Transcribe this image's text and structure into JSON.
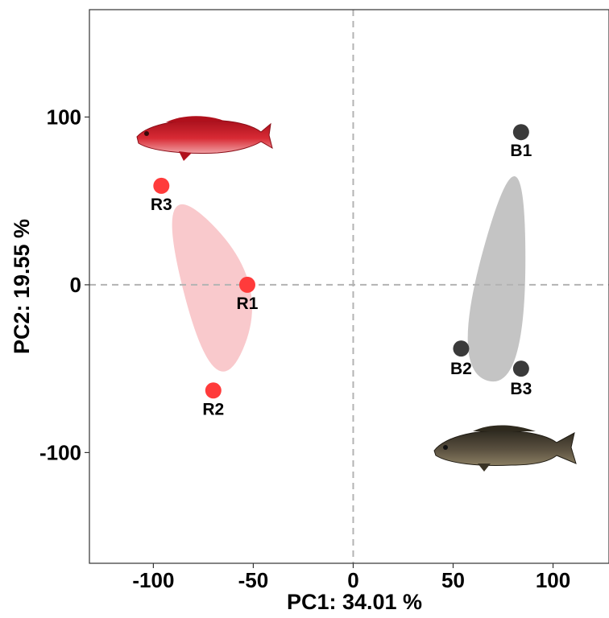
{
  "chart_data": {
    "type": "scatter",
    "title": "",
    "xlabel": "PC1: 34.01 %",
    "ylabel": "PC2: 19.55 %",
    "xlim": [
      -132,
      128
    ],
    "ylim": [
      -166,
      164
    ],
    "x_ticks": [
      -100,
      -50,
      0,
      50,
      100
    ],
    "x_tick_labels": [
      "-100",
      "-50",
      "0",
      "50",
      "100"
    ],
    "y_ticks": [
      -100,
      0,
      100
    ],
    "y_tick_labels": [
      "-100",
      "0",
      "100"
    ],
    "grid": false,
    "reference_lines": {
      "x": 0,
      "y": 0,
      "style": "dashed",
      "color": "#b3b3b3"
    },
    "series": [
      {
        "color": "#ff3b3b",
        "hull_color": "#f9c9cc",
        "points": [
          {
            "label": "R1",
            "x": -53,
            "y": 0
          },
          {
            "label": "R2",
            "x": -70,
            "y": -63
          },
          {
            "label": "R3",
            "x": -96,
            "y": 59
          }
        ]
      },
      {
        "color": "#3a3a3a",
        "hull_color": "#c4c4c4",
        "points": [
          {
            "label": "B1",
            "x": 84,
            "y": 91
          },
          {
            "label": "B2",
            "x": 54,
            "y": -38
          },
          {
            "label": "B3",
            "x": 84,
            "y": -50
          }
        ]
      }
    ],
    "images": [
      {
        "name": "red-fish-image",
        "near": "top-left",
        "color": "#c8202c"
      },
      {
        "name": "dark-fish-image",
        "near": "bottom-right",
        "color": "#4a4030"
      }
    ]
  }
}
